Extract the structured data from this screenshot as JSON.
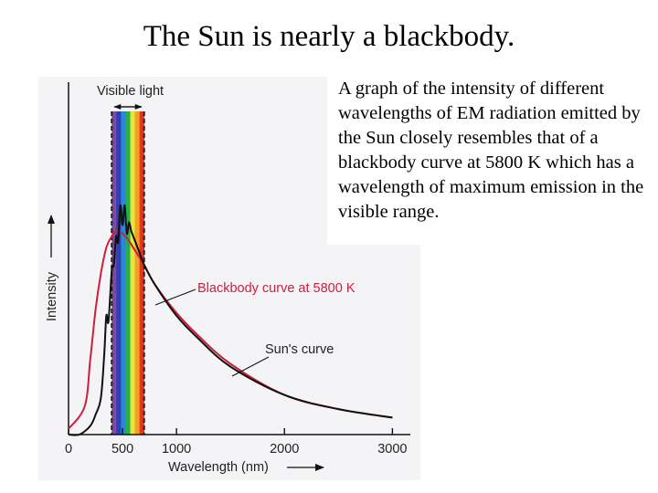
{
  "slide": {
    "title": "The Sun is nearly a blackbody.",
    "caption": "A graph of the intensity of different wavelengths of EM radiation emitted by the Sun closely resembles that of a blackbody curve at 5800 K which has a wavelength of maximum emission in the visible range."
  },
  "chart_data": {
    "type": "line",
    "xlabel": "Wavelength (nm)",
    "ylabel": "Intensity",
    "xlim": [
      0,
      3200
    ],
    "ylim": [
      0,
      1.0
    ],
    "x_ticks": [
      0,
      500,
      1000,
      2000,
      3000
    ],
    "grid": false,
    "visible_band": {
      "label": "Visible light",
      "range": [
        400,
        700
      ],
      "colors": [
        "#7b4aa8",
        "#2f3fb5",
        "#2a86d6",
        "#26b04a",
        "#e8e23a",
        "#f2a128",
        "#e8331f"
      ]
    },
    "series": [
      {
        "name": "Blackbody curve at 5800 K",
        "color": "#cc1f3e",
        "x": [
          0,
          150,
          200,
          250,
          300,
          350,
          400,
          450,
          500,
          550,
          600,
          700,
          800,
          1000,
          1200,
          1500,
          2000,
          2500,
          3000
        ],
        "values": [
          0.02,
          0.1,
          0.26,
          0.44,
          0.57,
          0.66,
          0.7,
          0.72,
          0.71,
          0.69,
          0.66,
          0.6,
          0.53,
          0.43,
          0.35,
          0.25,
          0.14,
          0.09,
          0.06
        ]
      },
      {
        "name": "Sun's curve",
        "color": "#111111",
        "x": [
          0,
          100,
          200,
          250,
          300,
          330,
          350,
          370,
          400,
          420,
          440,
          460,
          480,
          500,
          520,
          540,
          560,
          580,
          600,
          650,
          700,
          800,
          1000,
          1200,
          1500,
          2000,
          2500,
          3000
        ],
        "values": [
          0.0,
          0.0,
          0.03,
          0.07,
          0.13,
          0.28,
          0.42,
          0.4,
          0.58,
          0.6,
          0.7,
          0.68,
          0.81,
          0.74,
          0.81,
          0.71,
          0.75,
          0.72,
          0.7,
          0.65,
          0.6,
          0.53,
          0.42,
          0.34,
          0.24,
          0.14,
          0.09,
          0.06
        ]
      }
    ]
  }
}
